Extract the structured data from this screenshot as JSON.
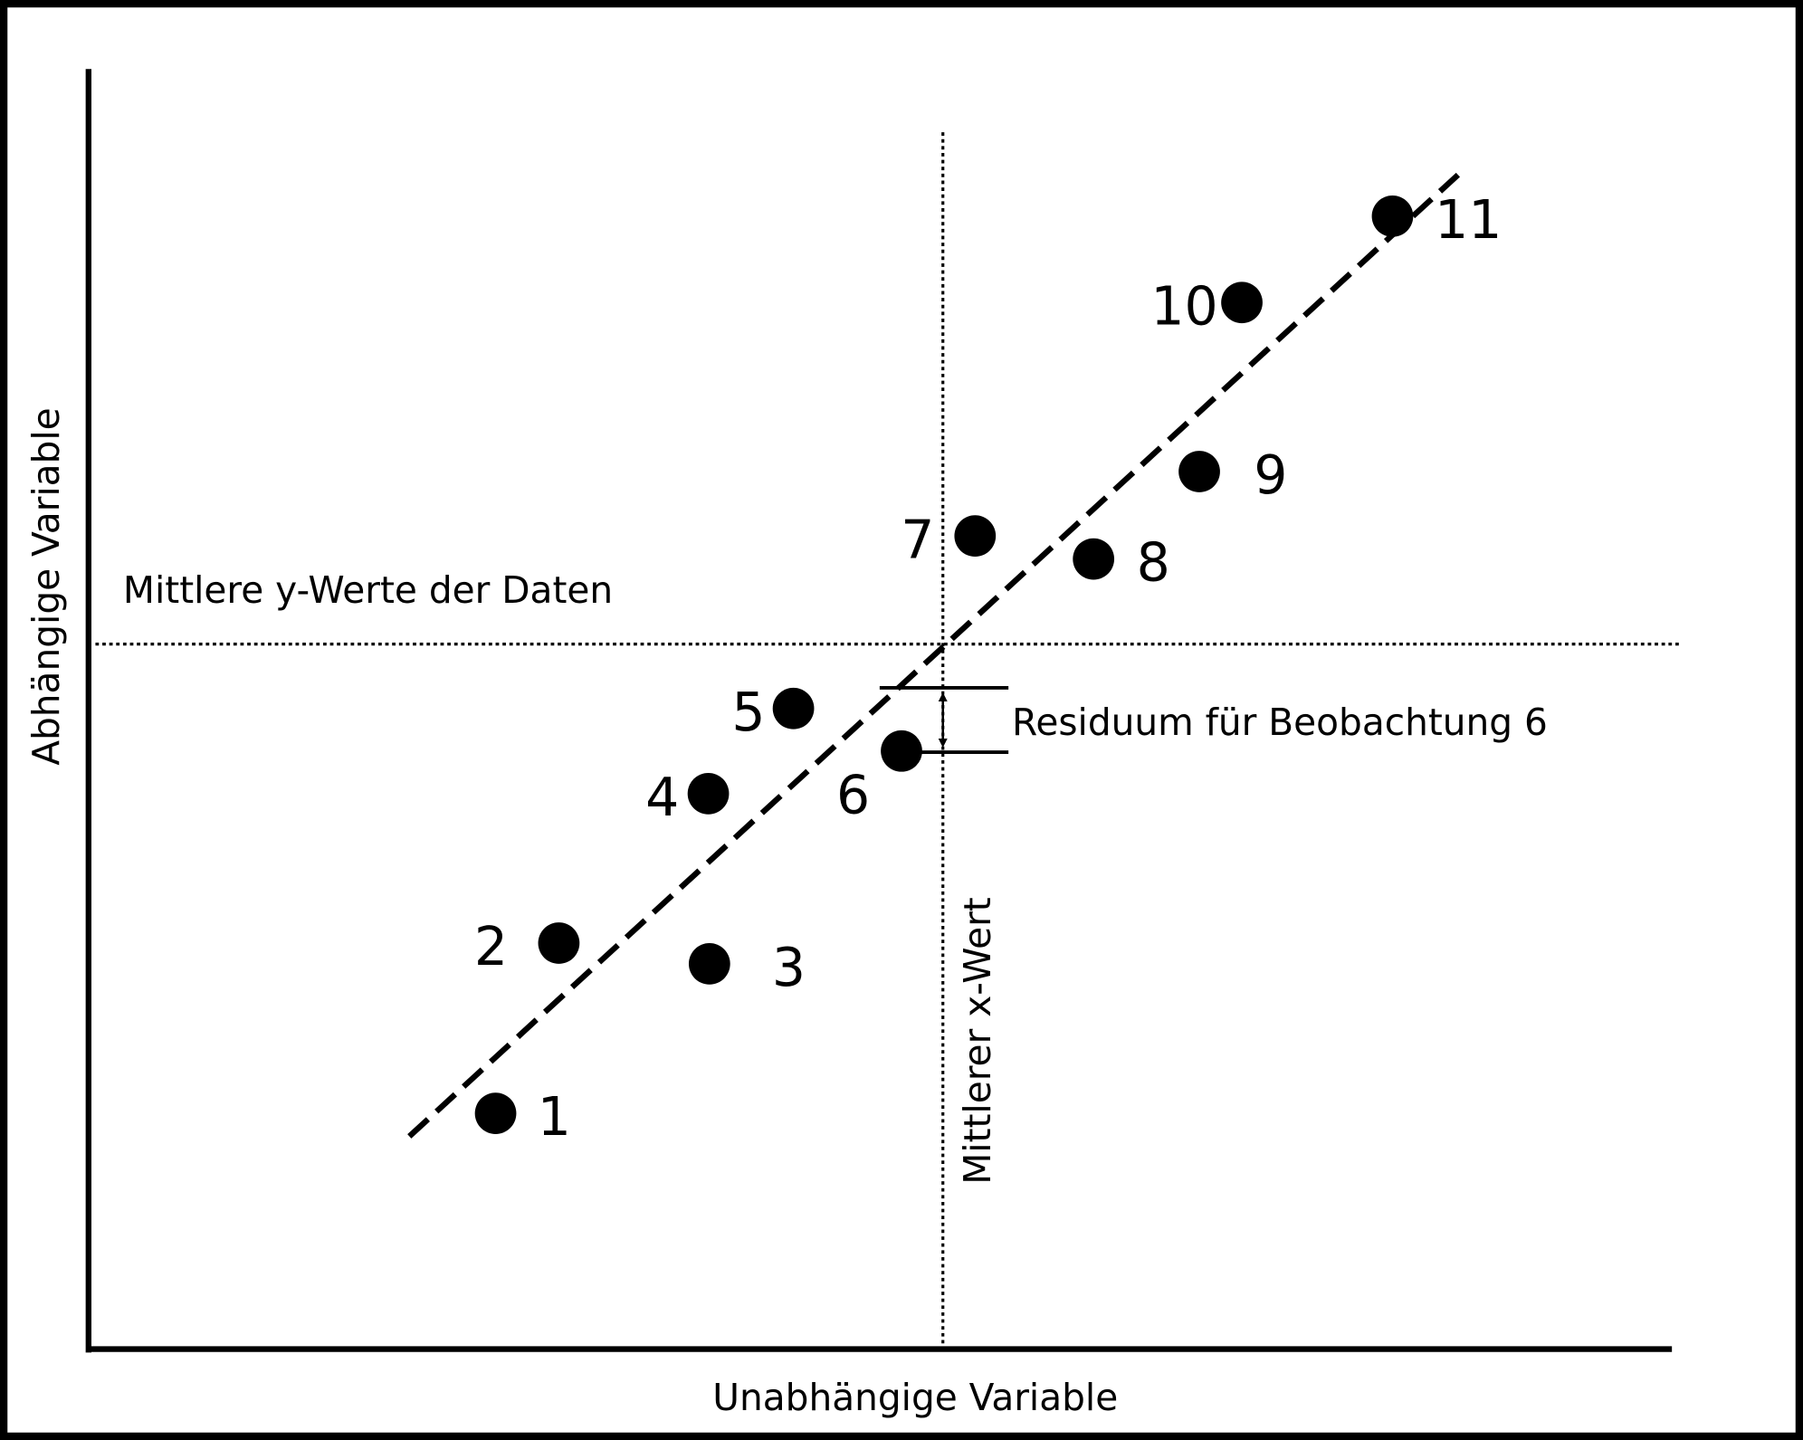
{
  "x_axis_label": "Unabhängige Variable",
  "y_axis_label": "Abhängige Variable",
  "annotations": {
    "mean_y": "Mittlere y-Werte der Daten",
    "mean_x": "Mittlerer x-Wert",
    "residual": "Residuum für Beobachtung 6"
  },
  "points": [
    {
      "label": "1"
    },
    {
      "label": "2"
    },
    {
      "label": "3"
    },
    {
      "label": "4"
    },
    {
      "label": "5"
    },
    {
      "label": "6"
    },
    {
      "label": "7"
    },
    {
      "label": "8"
    },
    {
      "label": "9"
    },
    {
      "label": "10"
    },
    {
      "label": "11"
    }
  ]
}
